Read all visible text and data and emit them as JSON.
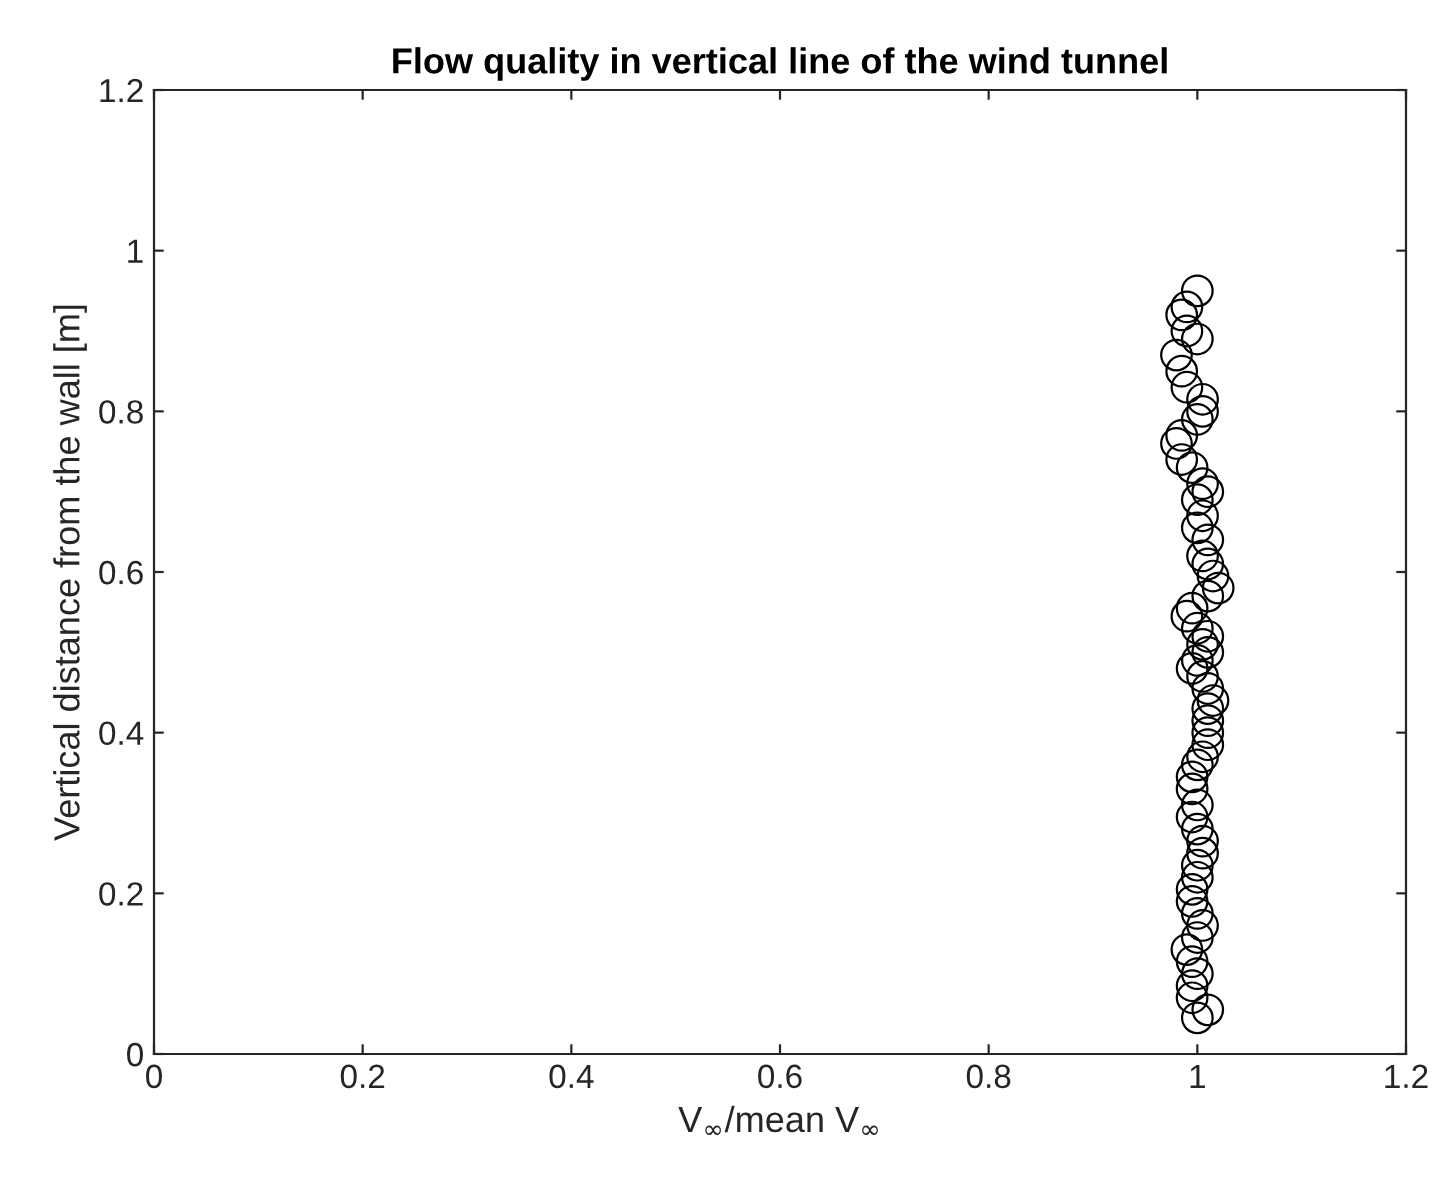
{
  "chart_data": {
    "type": "scatter",
    "title": "Flow quality in vertical line of the wind tunnel",
    "xlabel": "V$_{∞}$/mean V$_{∞}$",
    "ylabel": "Vertical distance from the wall [m]",
    "xlim": [
      0,
      1.2
    ],
    "xticks": [
      0,
      0.2,
      0.4,
      0.6,
      0.8,
      1,
      1.2
    ],
    "ylim": [
      0,
      1.2
    ],
    "yticks": [
      0,
      0.2,
      0.4,
      0.6,
      0.8,
      1,
      1.2
    ],
    "grid": false,
    "legend": false,
    "marker": "circle",
    "series": [
      {
        "color": "#000000",
        "x": [
          1.0,
          0.99,
          0.985,
          0.99,
          1.0,
          0.98,
          0.985,
          0.99,
          1.005,
          1.005,
          1.0,
          0.985,
          0.98,
          0.985,
          0.995,
          1.005,
          1.01,
          1.0,
          1.005,
          1.0,
          1.01,
          1.005,
          1.01,
          1.015,
          1.02,
          1.01,
          0.995,
          0.99,
          1.0,
          1.01,
          1.005,
          1.01,
          1.0,
          0.995,
          1.005,
          1.01,
          1.015,
          1.01,
          1.01,
          1.01,
          1.01,
          1.005,
          1.0,
          0.995,
          0.995,
          1.0,
          0.995,
          1.0,
          1.005,
          1.005,
          1.0,
          1.0,
          0.995,
          0.995,
          1.0,
          1.005,
          1.0,
          0.99,
          0.995,
          1.0,
          0.995,
          0.995,
          1.01,
          1.0
        ],
        "values": [
          0.95,
          0.93,
          0.92,
          0.9,
          0.89,
          0.87,
          0.85,
          0.83,
          0.815,
          0.8,
          0.79,
          0.77,
          0.76,
          0.74,
          0.73,
          0.71,
          0.7,
          0.69,
          0.67,
          0.655,
          0.64,
          0.62,
          0.61,
          0.595,
          0.58,
          0.57,
          0.555,
          0.545,
          0.53,
          0.52,
          0.51,
          0.5,
          0.49,
          0.48,
          0.47,
          0.455,
          0.44,
          0.43,
          0.415,
          0.4,
          0.385,
          0.37,
          0.36,
          0.345,
          0.33,
          0.31,
          0.295,
          0.28,
          0.265,
          0.25,
          0.235,
          0.22,
          0.205,
          0.19,
          0.175,
          0.16,
          0.145,
          0.13,
          0.115,
          0.1,
          0.085,
          0.07,
          0.055,
          0.045
        ]
      }
    ]
  }
}
